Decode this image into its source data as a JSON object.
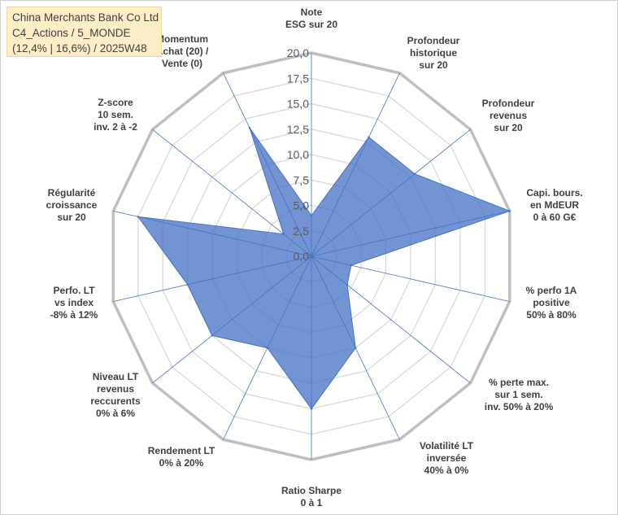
{
  "title_box": {
    "line1": "China Merchants Bank Co Ltd",
    "line2": "C4_Actions / 5_MONDE",
    "line3": "(12,4% | 16,6%) / 2025W48"
  },
  "chart_data": {
    "type": "radar",
    "range": [
      0,
      20
    ],
    "tick_step": 2.5,
    "tick_labels": [
      "0,0",
      "2,5",
      "5,0",
      "7,5",
      "10,0",
      "12,5",
      "15,0",
      "17,5",
      "20,0"
    ],
    "grid": true,
    "axes": [
      {
        "label": [
          "Note",
          "ESG sur 20"
        ]
      },
      {
        "label": [
          "Profondeur",
          "historique",
          "sur 20"
        ]
      },
      {
        "label": [
          "Profondeur",
          "revenus",
          "sur 20"
        ]
      },
      {
        "label": [
          "Capi. bours.",
          "en MdEUR",
          "0 à 60 G€"
        ]
      },
      {
        "label": [
          "% perfo 1A",
          "positive",
          "50% à 80%"
        ]
      },
      {
        "label": [
          "% perte max.",
          "sur 1 sem.",
          "inv. 50% à 20%"
        ]
      },
      {
        "label": [
          "Volatilité LT",
          "inversée",
          "40% à 0%"
        ]
      },
      {
        "label": [
          "Ratio Sharpe",
          "0 à 1"
        ]
      },
      {
        "label": [
          "Rendement LT",
          "0% à 20%"
        ]
      },
      {
        "label": [
          "Niveau LT",
          "revenus",
          "reccurents",
          "0% à 6%"
        ]
      },
      {
        "label": [
          "Perfo. LT",
          "vs index",
          "-8% à 12%"
        ]
      },
      {
        "label": [
          "Régularité",
          "croissance",
          "sur 20"
        ]
      },
      {
        "label": [
          "Z-score",
          "10 sem.",
          "inv. 2 à -2"
        ]
      },
      {
        "label": [
          "Momentum",
          "Achat (20) /",
          "Vente (0)"
        ]
      }
    ],
    "series": [
      {
        "values": [
          4.0,
          13.0,
          13.0,
          20.0,
          4.0,
          4.5,
          10.0,
          15.0,
          10.0,
          12.5,
          12.5,
          17.5,
          3.5,
          14.0
        ]
      }
    ],
    "colors": {
      "fill": "#4472c4",
      "fill_opacity": 0.75,
      "stroke": "#4472c4",
      "grid": "#d9d9d9",
      "outer": "#bfbfbf",
      "spoke": "#4472c4"
    }
  }
}
